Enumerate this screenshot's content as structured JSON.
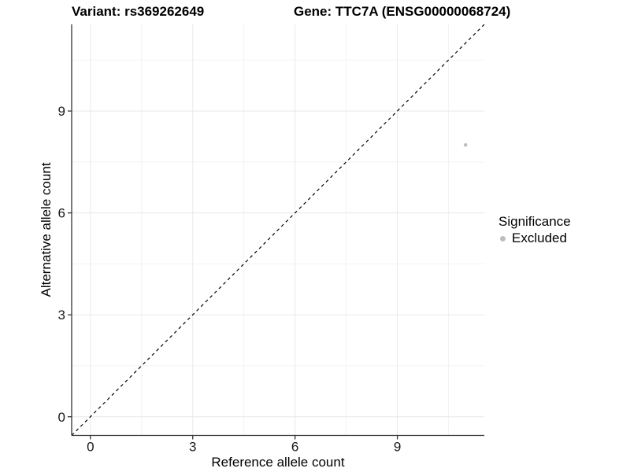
{
  "titles": {
    "variant": "Variant: rs369262649",
    "gene": "Gene: TTC7A (ENSG00000068724)"
  },
  "chart_data": {
    "type": "scatter",
    "title_left": "Variant: rs369262649",
    "title_right": "Gene: TTC7A (ENSG00000068724)",
    "xlabel": "Reference allele count",
    "ylabel": "Alternative allele count",
    "xlim": [
      -0.55,
      11.55
    ],
    "ylim": [
      -0.55,
      11.55
    ],
    "x_ticks": [
      0,
      3,
      6,
      9
    ],
    "y_ticks": [
      0,
      3,
      6,
      9
    ],
    "x_minor_ticks": [
      1.5,
      4.5,
      7.5,
      10.5
    ],
    "y_minor_ticks": [
      1.5,
      4.5,
      7.5,
      10.5
    ],
    "grid": "major+minor",
    "points": [
      {
        "x": 11,
        "y": 8,
        "significance": "Excluded"
      }
    ],
    "reference_line": {
      "type": "abline",
      "slope": 1,
      "intercept": 0,
      "style": "dashed"
    },
    "legend": {
      "title": "Significance",
      "position": "right",
      "entries": [
        {
          "label": "Excluded",
          "color": "#bebebe"
        }
      ]
    }
  },
  "colors": {
    "point": "#bebebe",
    "grid_major": "#e8e8e8",
    "grid_minor": "#f2f2f2",
    "axis_line": "#333333",
    "tick_mark": "#333333",
    "tick_text": "#1a1a1a",
    "reference_line": "#000000",
    "title_text": "#000000"
  }
}
